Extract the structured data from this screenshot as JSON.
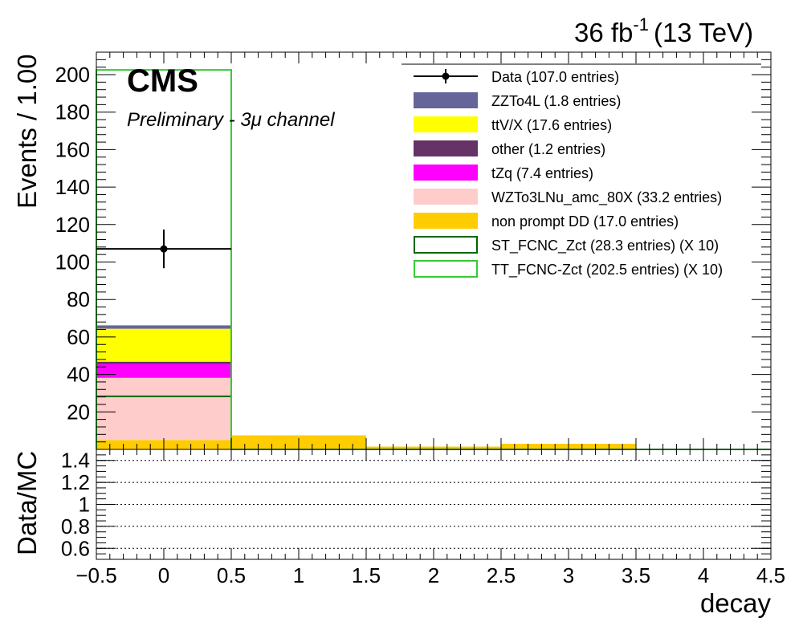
{
  "header": {
    "lumi_value": "36 fb",
    "lumi_exponent": "-1",
    "energy": "(13 TeV)"
  },
  "labels": {
    "cms": "CMS",
    "subtitle": "Preliminary - 3μ channel"
  },
  "chart_data": [
    {
      "type": "bar",
      "stacked": true,
      "xlabel": "decay",
      "ylabel": "Events / 1.00",
      "xlim": [
        -0.5,
        4.5
      ],
      "ylim": [
        0,
        212
      ],
      "bin_edges": [
        -0.5,
        0.5,
        1.5,
        2.5,
        3.5,
        4.5
      ],
      "x_ticks": [
        "−0.5",
        "0",
        "0.5",
        "1",
        "1.5",
        "2",
        "2.5",
        "3",
        "3.5",
        "4",
        "4.5"
      ],
      "x_tick_values": [
        -0.5,
        0,
        0.5,
        1,
        1.5,
        2,
        2.5,
        3,
        3.5,
        4,
        4.5
      ],
      "y_ticks": [
        "20",
        "40",
        "60",
        "80",
        "100",
        "120",
        "140",
        "160",
        "180",
        "200"
      ],
      "y_tick_values": [
        20,
        40,
        60,
        80,
        100,
        120,
        140,
        160,
        180,
        200
      ],
      "legend_position": "top-right",
      "stack_order": [
        "non prompt DD",
        "WZTo3LNu_amc_80X",
        "tZq",
        "other",
        "ttV/X",
        "ZZTo4L"
      ],
      "series": [
        {
          "name": "Data (107.0 entries)",
          "key": "Data",
          "kind": "points",
          "color": "#000000",
          "values": [
            107,
            0,
            0,
            0,
            0
          ],
          "errors": [
            10.3,
            0,
            0,
            0,
            0
          ]
        },
        {
          "name": "ZZTo4L (1.8 entries)",
          "key": "ZZTo4L",
          "kind": "stack",
          "color": "#656599",
          "values": [
            1.8,
            0,
            0,
            0,
            0
          ]
        },
        {
          "name": "ttV/X (17.6 entries)",
          "key": "ttV/X",
          "kind": "stack",
          "color": "#ffff00",
          "values": [
            17.6,
            0,
            0,
            0,
            0
          ]
        },
        {
          "name": "other (1.2 entries)",
          "key": "other",
          "kind": "stack",
          "color": "#663366",
          "values": [
            1.2,
            0,
            0,
            0,
            0
          ]
        },
        {
          "name": "tZq (7.4 entries)",
          "key": "tZq",
          "kind": "stack",
          "color": "#ff00ff",
          "values": [
            7.4,
            0,
            0,
            0,
            0
          ]
        },
        {
          "name": "WZTo3LNu_amc_80X (33.2 entries)",
          "key": "WZTo3LNu_amc_80X",
          "kind": "stack",
          "color": "#ffcccc",
          "values": [
            33.2,
            0,
            0,
            0,
            0
          ]
        },
        {
          "name": "non prompt DD (17.0 entries)",
          "key": "non prompt DD",
          "kind": "stack",
          "color": "#ffcc00",
          "values": [
            5.0,
            7.5,
            1.5,
            3.0,
            0
          ]
        },
        {
          "name": "ST_FCNC_Zct (28.3 entries) (X 10)",
          "key": "ST_FCNC_Zct",
          "kind": "line",
          "color": "#006600",
          "values": [
            28.3,
            0,
            0,
            0,
            0
          ]
        },
        {
          "name": "TT_FCNC-Zct (202.5 entries) (X 10)",
          "key": "TT_FCNC-Zct",
          "kind": "line",
          "color": "#33cc33",
          "values": [
            202.5,
            0,
            0,
            0,
            0
          ]
        }
      ]
    },
    {
      "type": "scatter",
      "ylabel": "Data/MC",
      "xlabel": "decay",
      "xlim": [
        -0.5,
        4.5
      ],
      "ylim": [
        0.5,
        1.5
      ],
      "y_ticks": [
        "0.6",
        "0.8",
        "1",
        "1.2",
        "1.4"
      ],
      "y_tick_values": [
        0.6,
        0.8,
        1.0,
        1.2,
        1.4
      ],
      "grid": true,
      "values": []
    }
  ]
}
